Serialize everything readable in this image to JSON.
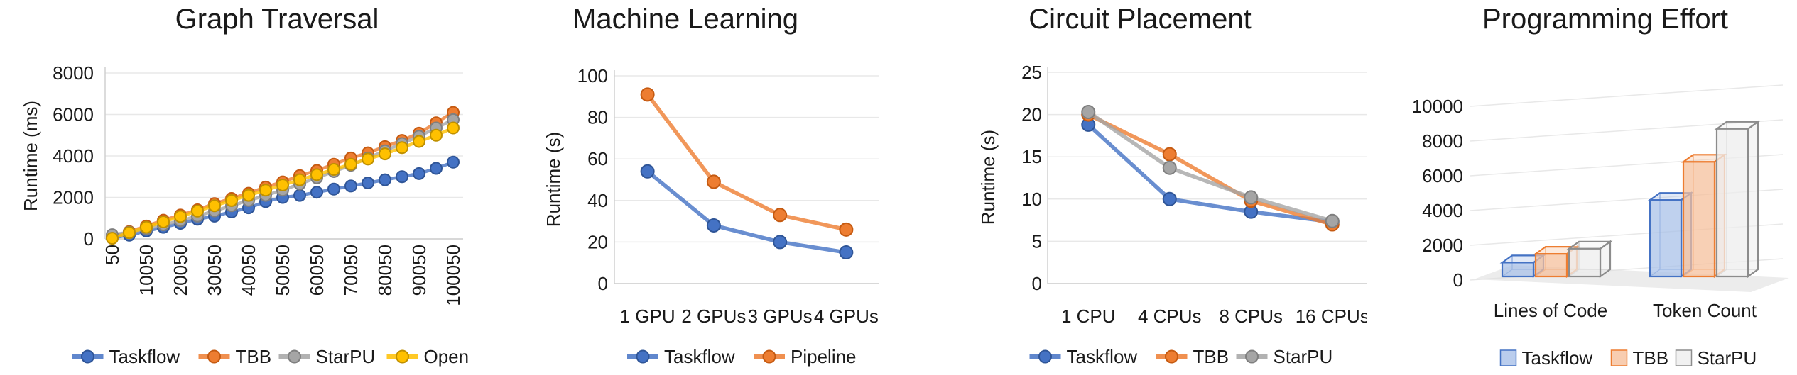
{
  "figure": {
    "background": "#ffffff",
    "text_color": "#1a1a1a",
    "gridline_color": "#e8e8e8",
    "axis_line_color": "#d0d0d0"
  },
  "colors": {
    "taskflow_blue": "#4472C4",
    "taskflow_blue_dark": "#2F5597",
    "tbb_orange": "#ED7D31",
    "tbb_orange_dark": "#C55A11",
    "starpu_gray": "#A5A5A5",
    "starpu_gray_dark": "#7F7F7F",
    "openmp_yellow": "#FFC000",
    "openmp_yellow_dark": "#BF9000"
  },
  "chart_data": [
    {
      "id": "graph-traversal",
      "type": "line",
      "title": "Graph Traversal",
      "xlabel": "",
      "ylabel": "Runtime (ms)",
      "ylim": [
        0,
        8000
      ],
      "yticks": [
        0,
        2000,
        4000,
        6000,
        8000
      ],
      "x": [
        50,
        5050,
        10050,
        15050,
        20050,
        25050,
        30050,
        35050,
        40050,
        45050,
        50050,
        55050,
        60050,
        65050,
        70050,
        75050,
        80050,
        85050,
        90050,
        95050,
        100050
      ],
      "xtick_labels": [
        "50",
        "10050",
        "20050",
        "30050",
        "40050",
        "50050",
        "60050",
        "70050",
        "80050",
        "90050",
        "100050"
      ],
      "xtick_every": 2,
      "grid": true,
      "legend_position": "bottom",
      "series": [
        {
          "name": "Taskflow",
          "color": "#4472C4",
          "edge": "#2F5597",
          "values": [
            50,
            180,
            380,
            560,
            750,
            950,
            1100,
            1300,
            1500,
            1800,
            2000,
            2100,
            2250,
            2400,
            2550,
            2700,
            2850,
            3000,
            3150,
            3400,
            3700
          ]
        },
        {
          "name": "TBB",
          "color": "#ED7D31",
          "edge": "#C55A11",
          "values": [
            100,
            350,
            620,
            900,
            1150,
            1400,
            1700,
            1950,
            2200,
            2500,
            2750,
            3050,
            3300,
            3600,
            3900,
            4150,
            4450,
            4750,
            5100,
            5600,
            6100
          ]
        },
        {
          "name": "StarPU",
          "color": "#A5A5A5",
          "edge": "#7F7F7F",
          "values": [
            200,
            320,
            480,
            680,
            880,
            1100,
            1350,
            1600,
            1850,
            2100,
            2350,
            2650,
            2950,
            3250,
            3550,
            3900,
            4250,
            4600,
            4950,
            5350,
            5750
          ]
        },
        {
          "name": "OpenMP",
          "color": "#FFC000",
          "edge": "#BF9000",
          "values": [
            30,
            300,
            560,
            820,
            1080,
            1340,
            1600,
            1850,
            2100,
            2350,
            2600,
            2850,
            3100,
            3350,
            3600,
            3850,
            4100,
            4400,
            4700,
            5000,
            5350
          ]
        }
      ]
    },
    {
      "id": "machine-learning",
      "type": "line",
      "title": "Machine Learning",
      "xlabel": "",
      "ylabel": "Runtime (s)",
      "ylim": [
        0,
        100
      ],
      "yticks": [
        0,
        20,
        40,
        60,
        80,
        100
      ],
      "categories": [
        "1 GPU",
        "2 GPUs",
        "3 GPUs",
        "4 GPUs"
      ],
      "grid": true,
      "legend_position": "bottom",
      "series": [
        {
          "name": "Taskflow",
          "color": "#4472C4",
          "edge": "#2F5597",
          "values": [
            54,
            28,
            20,
            15
          ]
        },
        {
          "name": "Pipeline",
          "color": "#ED7D31",
          "edge": "#C55A11",
          "values": [
            91,
            49,
            33,
            26
          ]
        }
      ]
    },
    {
      "id": "circuit-placement",
      "type": "line",
      "title": "Circuit Placement",
      "xlabel": "",
      "ylabel": "Runtime (s)",
      "ylim": [
        0,
        25
      ],
      "yticks": [
        0,
        5,
        10,
        15,
        20,
        25
      ],
      "categories": [
        "1 CPU",
        "4 CPUs",
        "8 CPUs",
        "16 CPUs"
      ],
      "grid": true,
      "legend_position": "bottom",
      "series": [
        {
          "name": "Taskflow",
          "color": "#4472C4",
          "edge": "#2F5597",
          "values": [
            18.8,
            10,
            8.5,
            7.3
          ]
        },
        {
          "name": "TBB",
          "color": "#ED7D31",
          "edge": "#C55A11",
          "values": [
            20,
            15.3,
            9.8,
            7
          ]
        },
        {
          "name": "StarPU",
          "color": "#A5A5A5",
          "edge": "#7F7F7F",
          "values": [
            20.3,
            13.7,
            10.2,
            7.4
          ]
        }
      ]
    },
    {
      "id": "programming-effort",
      "type": "bar",
      "bar_style": "3d-box",
      "title": "Programming Effort",
      "xlabel": "",
      "ylabel": "",
      "ylim": [
        0,
        10000
      ],
      "yticks": [
        0,
        2000,
        4000,
        6000,
        8000,
        10000
      ],
      "categories": [
        "Lines of Code",
        "Token Count"
      ],
      "grid": true,
      "legend_position": "bottom",
      "series": [
        {
          "name": "Taskflow",
          "color": "#4472C4",
          "fill": "#A9C1E8",
          "values": [
            800,
            4400
          ]
        },
        {
          "name": "TBB",
          "color": "#ED7D31",
          "fill": "#F6C09C",
          "values": [
            1300,
            6600
          ]
        },
        {
          "name": "StarPU",
          "color": "#8C8C8C",
          "fill": "#EDEDED",
          "values": [
            1600,
            8500
          ]
        }
      ]
    }
  ]
}
